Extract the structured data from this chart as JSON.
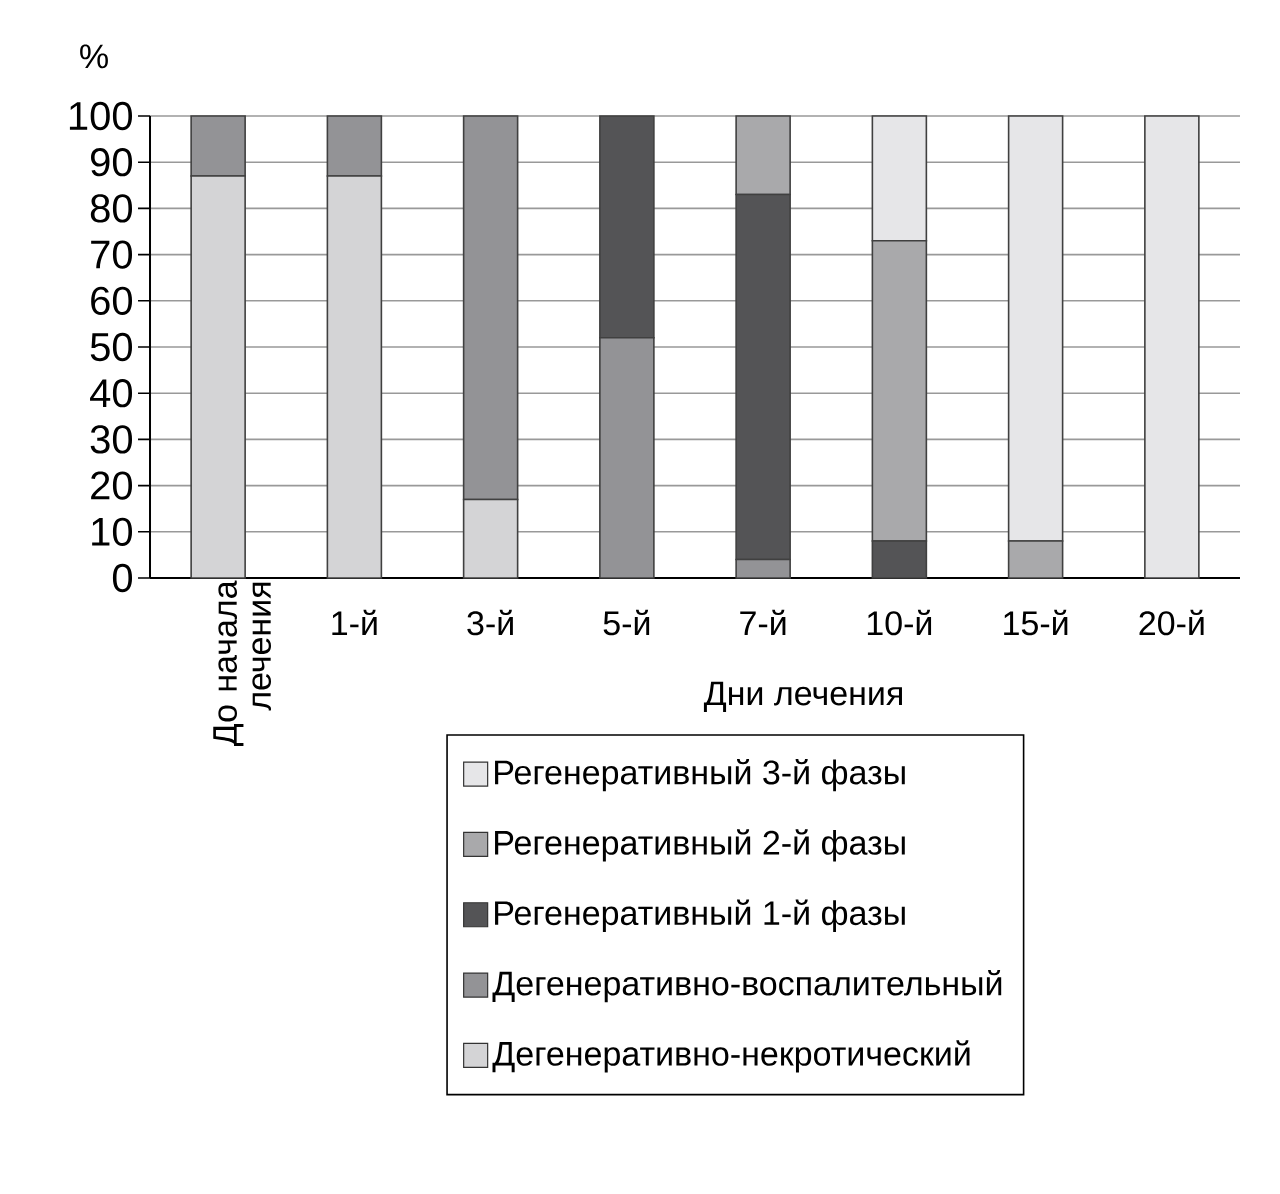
{
  "chart_data": {
    "type": "bar",
    "stacked": true,
    "ylabel": "%",
    "xlabel": "Дни лечения",
    "categories": [
      "До начала лечения",
      "1-й",
      "3-й",
      "5-й",
      "7-й",
      "10-й",
      "15-й",
      "20-й"
    ],
    "series": [
      {
        "name": "Дегенеративно-некротический",
        "color": "#d4d4d6",
        "values": [
          87,
          87,
          17,
          0,
          0,
          0,
          0,
          0
        ]
      },
      {
        "name": "Дегенеративно-воспалительный",
        "color": "#939396",
        "values": [
          13,
          13,
          83,
          52,
          4,
          0,
          0,
          0
        ]
      },
      {
        "name": "Регенеративный 1-й фазы",
        "color": "#545456",
        "values": [
          0,
          0,
          0,
          48,
          79,
          8,
          0,
          0
        ]
      },
      {
        "name": "Регенеративный 2-й фазы",
        "color": "#a9a9ab",
        "values": [
          0,
          0,
          0,
          0,
          17,
          65,
          8,
          0
        ]
      },
      {
        "name": "Регенеративный 3-й фазы",
        "color": "#e6e6e8",
        "values": [
          0,
          0,
          0,
          0,
          0,
          27,
          92,
          100
        ]
      }
    ],
    "ylim": [
      0,
      100
    ],
    "yticks": [
      0,
      10,
      20,
      30,
      40,
      50,
      60,
      70,
      80,
      90,
      100
    ],
    "grid": "y",
    "legend": "bottom"
  }
}
